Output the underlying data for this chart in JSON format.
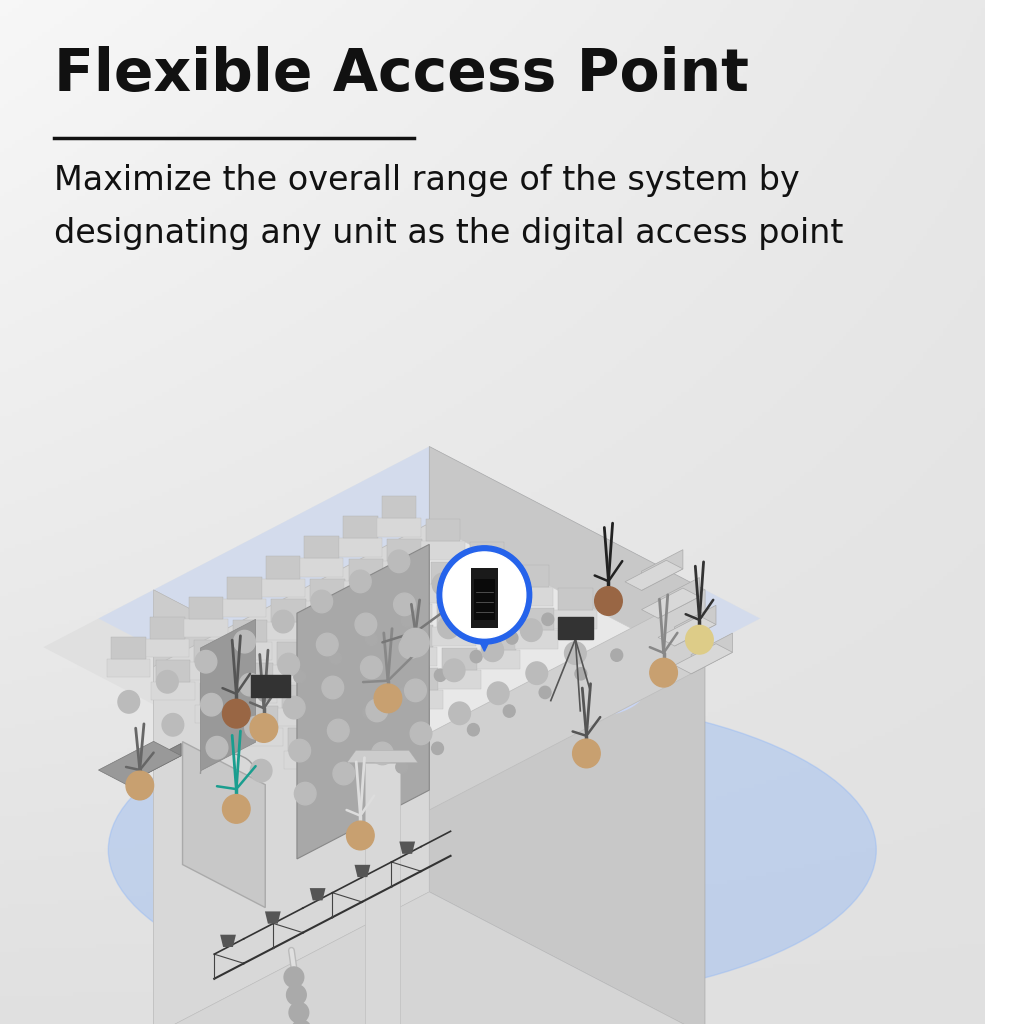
{
  "title": "Flexible Access Point",
  "subtitle_line1": "Maximize the overall range of the system by",
  "subtitle_line2": "designating any unit as the digital access point",
  "title_fontsize": 42,
  "subtitle_fontsize": 24,
  "accent_blue": "#2563EB",
  "teal": "#1a9e8f",
  "black": "#111111",
  "bg_light": "#e8e8e8",
  "bg_dark": "#c8c8c8",
  "iso_ox": 0.38,
  "iso_oy": 0.2,
  "iso_sx": 0.028,
  "iso_sy": 0.014,
  "iso_sz": 0.03
}
